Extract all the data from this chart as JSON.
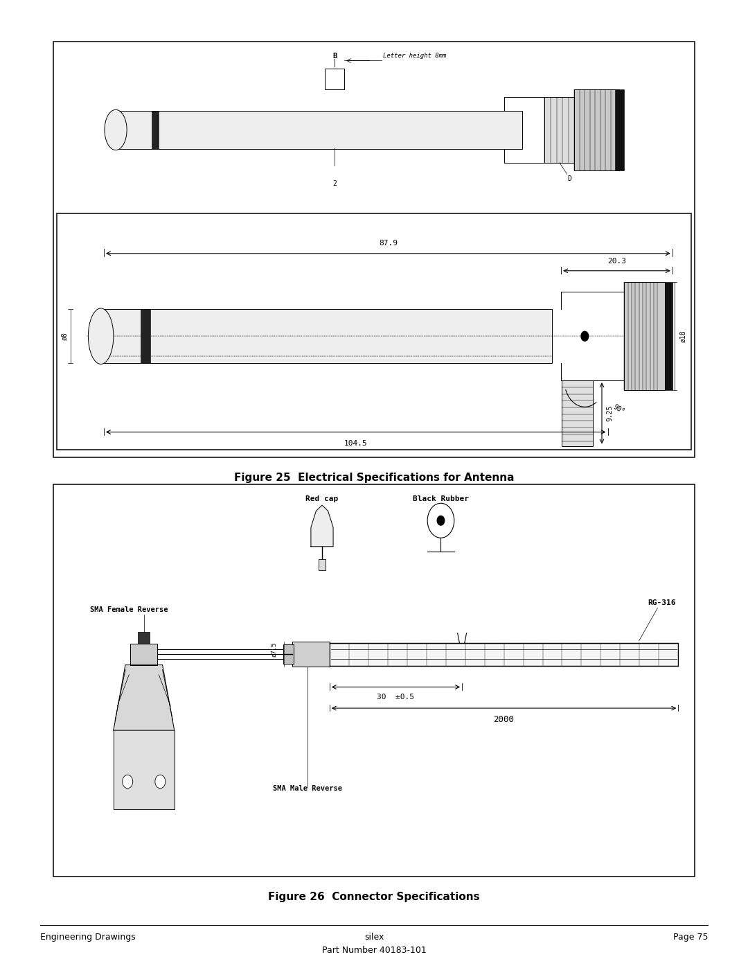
{
  "page_bg": "#ffffff",
  "fig1_caption": "Figure 25  Electrical Specifications for Antenna",
  "fig2_caption": "Figure 26  Connector Specifications",
  "footer_left": "Engineering Drawings",
  "footer_center": "silex",
  "footer_center2": "Part Number 40183-101",
  "footer_right": "Page 75",
  "lc": "#000000"
}
